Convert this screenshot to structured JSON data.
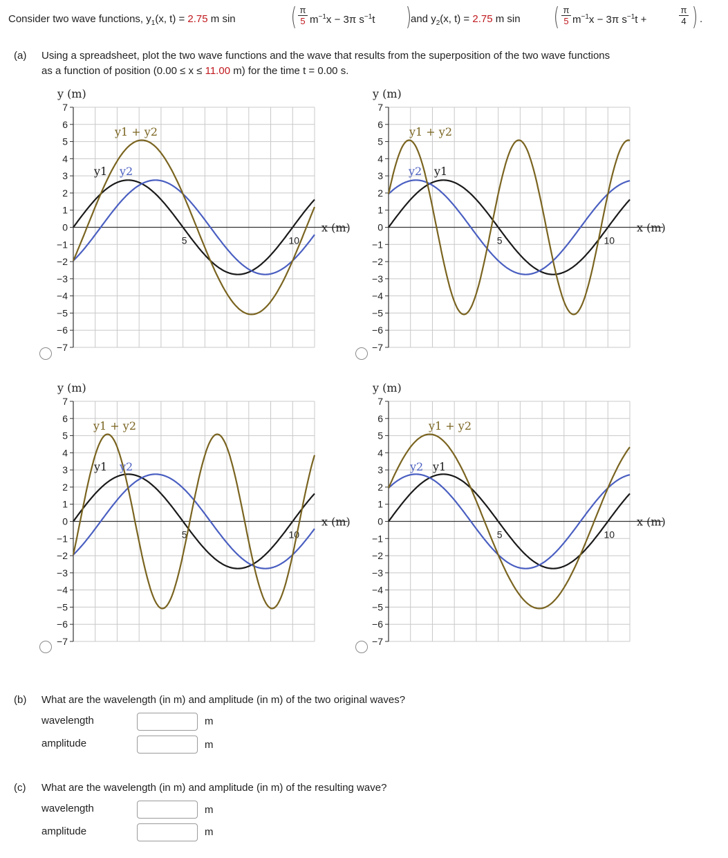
{
  "problem": {
    "text1": "Consider two wave functions, y",
    "sub1": "1",
    "text2": "(x, t) = ",
    "amp1": "2.75",
    "text3": " m sin",
    "frac1_num": "π",
    "frac1_den": "5",
    "text4": " m",
    "sup1": "−1",
    "text5": "x − 3π s",
    "sup2": "−1",
    "text6": "t",
    "text7": " and y",
    "sub2": "2",
    "text8": "(x, t) = ",
    "amp2": "2.75",
    "text9": " m sin",
    "frac2_num": "π",
    "frac2_den": "5",
    "text10": " m",
    "sup3": "−1",
    "text11": "x − 3π s",
    "sup4": "−1",
    "text12": "t + ",
    "frac3_num": "π",
    "frac3_den": "4",
    "text13": "."
  },
  "part_a": {
    "label": "(a)",
    "line1": "Using a spreadsheet, plot the two wave functions and the wave that results from the superposition of the two wave functions",
    "line2_pre": "as a function of position (0.00 ≤ x ≤ ",
    "line2_val": "11.00",
    "line2_post": " m) for the time t = 0.00 s."
  },
  "part_b": {
    "label": "(b)",
    "question": "What are the wavelength (in m) and amplitude (in m) of the two original waves?",
    "wavelength_label": "wavelength",
    "amplitude_label": "amplitude",
    "unit": "m"
  },
  "part_c": {
    "label": "(c)",
    "question": "What are the wavelength (in m) and amplitude (in m) of the resulting wave?",
    "wavelength_label": "wavelength",
    "amplitude_label": "amplitude",
    "unit": "m"
  },
  "colors": {
    "y1": "#1a1a1a",
    "y2": "#4a5fc1",
    "sum": "#7a6420",
    "grid": "#c8c8c8",
    "red": "#c0181d"
  },
  "chart_common": {
    "ylabel": "y (m)",
    "xlabel": "x (m)",
    "y_ticks": [
      "7",
      "6",
      "5",
      "4",
      "3",
      "2",
      "1",
      "0",
      "−1",
      "−2",
      "−3",
      "−4",
      "−5",
      "−6",
      "−7"
    ],
    "x_ticks": [
      "5",
      "10"
    ],
    "label_y1": "y1",
    "label_y2": "y2",
    "label_sum": "y1 + y2"
  },
  "chart_data": [
    {
      "type": "line",
      "option": "top-left",
      "xlim": [
        0,
        11
      ],
      "ylim": [
        -7,
        7
      ],
      "series": [
        {
          "name": "y1",
          "amp": 2.75,
          "k": 0.6283,
          "phase": 0
        },
        {
          "name": "y2",
          "amp": 2.75,
          "k": 0.6283,
          "phase": -0.7854
        },
        {
          "name": "y1 + y2",
          "amp": 5.08,
          "k": 0.6283,
          "phase": -0.3927
        }
      ]
    },
    {
      "type": "line",
      "option": "top-right",
      "xlim": [
        0,
        11
      ],
      "ylim": [
        -7,
        7
      ],
      "series": [
        {
          "name": "y1",
          "amp": 2.75,
          "k": 0.6283,
          "phase": 0
        },
        {
          "name": "y2",
          "amp": 2.75,
          "k": 0.6283,
          "phase": 0.7854
        },
        {
          "name": "y1 + y2",
          "amp": 5.08,
          "k": 1.2566,
          "phase": 0.3927
        }
      ]
    },
    {
      "type": "line",
      "option": "bottom-left",
      "xlim": [
        0,
        11
      ],
      "ylim": [
        -7,
        7
      ],
      "series": [
        {
          "name": "y1",
          "amp": 2.75,
          "k": 0.6283,
          "phase": 0
        },
        {
          "name": "y2",
          "amp": 2.75,
          "k": 0.6283,
          "phase": -0.7854
        },
        {
          "name": "y1 + y2",
          "amp": 5.08,
          "k": 1.2566,
          "phase": -0.3927
        }
      ]
    },
    {
      "type": "line",
      "option": "bottom-right",
      "xlim": [
        0,
        11
      ],
      "ylim": [
        -7,
        7
      ],
      "series": [
        {
          "name": "y1",
          "amp": 2.75,
          "k": 0.6283,
          "phase": 0
        },
        {
          "name": "y2",
          "amp": 2.75,
          "k": 0.6283,
          "phase": 0.7854
        },
        {
          "name": "y1 + y2",
          "amp": 5.08,
          "k": 0.6283,
          "phase": 0.3927
        }
      ]
    }
  ]
}
